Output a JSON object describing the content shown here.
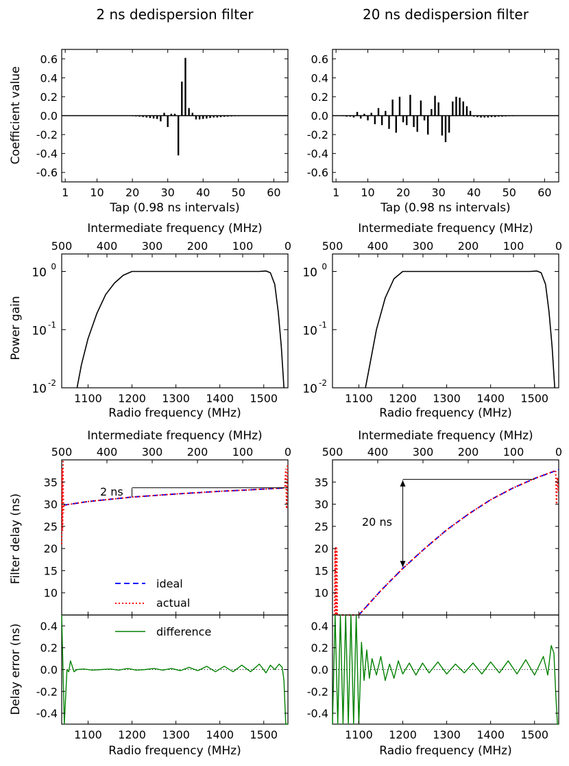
{
  "columns": [
    {
      "title": "2 ns dedispersion filter"
    },
    {
      "title": "20 ns dedispersion filter"
    }
  ],
  "labels": {
    "tap_x": "Tap (0.98 ns intervals)",
    "coef_y": "Coefficient value",
    "if_x": "Intermediate frequency (MHz)",
    "rf_x": "Radio frequency (MHz)",
    "power_y": "Power gain",
    "delay_y": "Filter delay (ns)",
    "error_y": "Delay error (ns)"
  },
  "annotations": [
    "2 ns",
    "20 ns"
  ],
  "legend": {
    "ideal": "ideal",
    "actual": "actual",
    "difference": "difference"
  },
  "colors": {
    "ideal": "#0000ff",
    "actual": "#ff0000",
    "difference": "#008000",
    "stem": "#000000"
  },
  "chart_data": [
    {
      "type": "bar",
      "title": "2 ns dedispersion filter",
      "xlabel": "Tap (0.98 ns intervals)",
      "ylabel": "Coefficient value",
      "xlim": [
        0,
        64
      ],
      "ylim": [
        -0.7,
        0.7
      ],
      "xticks": [
        1,
        10,
        20,
        30,
        40,
        50,
        60
      ],
      "yticks": [
        0.6,
        0.4,
        0.2,
        0.0,
        -0.2,
        -0.4,
        -0.6
      ],
      "x": [
        20,
        21,
        22,
        23,
        24,
        25,
        26,
        27,
        28,
        29,
        30,
        31,
        32,
        33,
        34,
        35,
        36,
        37,
        38,
        39,
        40,
        41,
        42,
        43,
        44,
        45,
        46,
        47,
        48,
        49,
        50,
        51,
        52
      ],
      "values": [
        -0.005,
        -0.008,
        -0.01,
        -0.015,
        -0.02,
        -0.025,
        -0.03,
        -0.035,
        -0.06,
        0.03,
        -0.12,
        0.02,
        0.02,
        -0.42,
        0.36,
        0.61,
        0.08,
        0.03,
        -0.04,
        -0.04,
        -0.035,
        -0.03,
        -0.025,
        -0.02,
        -0.02,
        -0.015,
        -0.012,
        -0.01,
        -0.008,
        -0.006,
        -0.005,
        -0.003,
        -0.002
      ]
    },
    {
      "type": "bar",
      "title": "20 ns dedispersion filter",
      "xlabel": "Tap (0.98 ns intervals)",
      "ylabel": "",
      "xlim": [
        0,
        64
      ],
      "ylim": [
        -0.7,
        0.7
      ],
      "xticks": [
        1,
        10,
        20,
        30,
        40,
        50,
        60
      ],
      "yticks": [
        0.6,
        0.4,
        0.2,
        0.0,
        -0.2,
        -0.4,
        -0.6
      ],
      "x": [
        3,
        4,
        5,
        6,
        7,
        8,
        9,
        10,
        11,
        12,
        13,
        14,
        15,
        16,
        17,
        18,
        19,
        20,
        21,
        22,
        23,
        24,
        25,
        26,
        27,
        28,
        29,
        30,
        31,
        32,
        33,
        34,
        35,
        36,
        37,
        38,
        39,
        40,
        41,
        42,
        43,
        44,
        45,
        46,
        47,
        48,
        49,
        50,
        51,
        52,
        53,
        54
      ],
      "values": [
        -0.005,
        -0.01,
        -0.01,
        -0.02,
        0.04,
        -0.03,
        0.02,
        -0.05,
        0.03,
        -0.09,
        0.08,
        -0.1,
        0.05,
        -0.14,
        0.17,
        -0.18,
        0.2,
        -0.07,
        -0.1,
        0.22,
        -0.12,
        -0.17,
        0.16,
        -0.05,
        -0.2,
        0.07,
        0.21,
        0.14,
        -0.21,
        -0.28,
        -0.18,
        0.15,
        0.2,
        0.19,
        0.15,
        0.1,
        0.05,
        -0.01,
        -0.015,
        -0.02,
        -0.02,
        -0.02,
        -0.015,
        -0.015,
        -0.01,
        -0.01,
        -0.008,
        -0.006,
        -0.005,
        -0.004,
        -0.003,
        -0.002
      ]
    },
    {
      "type": "line",
      "xlabel": "Radio frequency (MHz)",
      "x2label": "Intermediate frequency (MHz)",
      "ylabel": "Power gain",
      "y_scale": "log",
      "xlim": [
        1040,
        1555
      ],
      "ylim": [
        0.01,
        2
      ],
      "xticks": [
        1100,
        1200,
        1300,
        1400,
        1500
      ],
      "x2ticks": [
        500,
        400,
        300,
        200,
        100,
        0
      ],
      "yticks": [
        "10^0",
        "10^-1",
        "10^-2"
      ],
      "x": [
        1075,
        1085,
        1100,
        1120,
        1140,
        1160,
        1180,
        1200,
        1300,
        1400,
        1490,
        1505,
        1515,
        1525,
        1533,
        1540,
        1546
      ],
      "values": [
        0.01,
        0.025,
        0.07,
        0.19,
        0.4,
        0.63,
        0.86,
        1.0,
        1.0,
        1.0,
        1.0,
        1.02,
        0.95,
        0.6,
        0.2,
        0.05,
        0.01
      ]
    },
    {
      "type": "line",
      "xlabel": "Radio frequency (MHz)",
      "x2label": "Intermediate frequency (MHz)",
      "ylabel": "",
      "y_scale": "log",
      "xlim": [
        1040,
        1555
      ],
      "ylim": [
        0.01,
        2
      ],
      "xticks": [
        1100,
        1200,
        1300,
        1400,
        1500
      ],
      "x2ticks": [
        500,
        400,
        300,
        200,
        100,
        0
      ],
      "yticks": [
        "10^0",
        "10^-1",
        "10^-2"
      ],
      "x": [
        1115,
        1125,
        1140,
        1160,
        1180,
        1200,
        1300,
        1400,
        1490,
        1505,
        1515,
        1525,
        1533,
        1540,
        1546
      ],
      "values": [
        0.01,
        0.025,
        0.1,
        0.35,
        0.75,
        1.0,
        1.0,
        1.0,
        1.0,
        1.02,
        0.95,
        0.6,
        0.2,
        0.05,
        0.01
      ]
    },
    {
      "type": "line",
      "xlabel": "",
      "x2label": "Intermediate frequency (MHz)",
      "ylabel": "Filter delay (ns)",
      "xlim": [
        1040,
        1555
      ],
      "ylim": [
        5,
        40
      ],
      "yticks": [
        35,
        30,
        25,
        20,
        15,
        10
      ],
      "x2ticks": [
        500,
        400,
        300,
        200,
        100,
        0
      ],
      "series": [
        {
          "name": "ideal",
          "x": [
            1045,
            1100,
            1200,
            1300,
            1400,
            1500,
            1550
          ],
          "values": [
            29.8,
            30.6,
            31.6,
            32.3,
            32.9,
            33.4,
            33.7
          ]
        },
        {
          "name": "actual",
          "x": [
            1040,
            1041,
            1042,
            1043,
            1044,
            1045,
            1046,
            1100,
            1200,
            1300,
            1400,
            1500,
            1548,
            1550,
            1552,
            1554
          ],
          "values": [
            21,
            38,
            24,
            40,
            28,
            30,
            29.8,
            30.6,
            31.6,
            32.3,
            32.9,
            33.4,
            33.7,
            38,
            29,
            39
          ]
        }
      ],
      "annotation": "2 ns"
    },
    {
      "type": "line",
      "xlabel": "",
      "x2label": "Intermediate frequency (MHz)",
      "ylabel": "",
      "xlim": [
        1040,
        1555
      ],
      "ylim": [
        5,
        40
      ],
      "yticks": [
        35,
        30,
        25,
        20,
        15,
        10
      ],
      "x2ticks": [
        500,
        400,
        300,
        200,
        100,
        0
      ],
      "series": [
        {
          "name": "ideal",
          "x": [
            1100,
            1150,
            1200,
            1250,
            1300,
            1350,
            1400,
            1450,
            1500,
            1555
          ],
          "values": [
            5,
            10.5,
            15.5,
            20,
            24.2,
            27.8,
            31,
            33.6,
            35.8,
            37.8
          ]
        },
        {
          "name": "actual",
          "x": [
            1045,
            1046,
            1047,
            1048,
            1049,
            1050,
            1051,
            1052,
            1100,
            1150,
            1200,
            1250,
            1300,
            1350,
            1400,
            1450,
            1500,
            1548,
            1550,
            1552,
            1554
          ],
          "values": [
            5,
            20,
            5,
            20.5,
            5,
            20,
            5,
            5,
            5,
            10.5,
            15.5,
            20,
            24.2,
            27.8,
            31,
            33.6,
            35.8,
            37.6,
            30,
            36,
            33
          ]
        }
      ],
      "annotation": "20 ns"
    },
    {
      "type": "line",
      "xlabel": "Radio frequency (MHz)",
      "ylabel": "Delay error (ns)",
      "xlim": [
        1040,
        1555
      ],
      "ylim": [
        -0.5,
        0.5
      ],
      "xticks": [
        1100,
        1200,
        1300,
        1400,
        1500
      ],
      "yticks": [
        0.4,
        0.2,
        0.0,
        -0.2,
        -0.4
      ],
      "series": [
        {
          "name": "difference",
          "x": [
            1040,
            1046,
            1052,
            1056,
            1060,
            1064,
            1068,
            1075,
            1090,
            1110,
            1130,
            1150,
            1170,
            1190,
            1210,
            1230,
            1250,
            1270,
            1290,
            1310,
            1330,
            1350,
            1370,
            1390,
            1410,
            1430,
            1450,
            1470,
            1490,
            1505,
            1515,
            1525,
            1535,
            1542,
            1546,
            1550,
            1555
          ],
          "values": [
            0.5,
            -0.5,
            0.0,
            -0.02,
            0.08,
            0.03,
            -0.02,
            0.0,
            0.005,
            -0.005,
            0.0,
            0.005,
            -0.005,
            0.01,
            -0.005,
            0.0,
            0.01,
            -0.005,
            0.01,
            -0.01,
            0.02,
            -0.01,
            0.03,
            -0.02,
            0.03,
            -0.02,
            0.04,
            -0.02,
            0.05,
            -0.03,
            0.04,
            0.0,
            0.05,
            0.02,
            -0.1,
            -0.5,
            -0.5
          ]
        }
      ]
    },
    {
      "type": "line",
      "xlabel": "Radio frequency (MHz)",
      "ylabel": "",
      "xlim": [
        1040,
        1555
      ],
      "ylim": [
        -0.5,
        0.5
      ],
      "xticks": [
        1100,
        1200,
        1300,
        1400,
        1500
      ],
      "yticks": [
        0.4,
        0.2,
        0.0,
        -0.2,
        -0.4
      ],
      "series": [
        {
          "name": "difference",
          "x": [
            1040,
            1046,
            1052,
            1058,
            1064,
            1070,
            1076,
            1082,
            1088,
            1094,
            1100,
            1106,
            1112,
            1118,
            1124,
            1130,
            1140,
            1150,
            1160,
            1170,
            1180,
            1190,
            1200,
            1215,
            1230,
            1245,
            1260,
            1280,
            1300,
            1320,
            1340,
            1360,
            1380,
            1400,
            1420,
            1440,
            1460,
            1480,
            1500,
            1520,
            1530,
            1538,
            1544,
            1548,
            1552,
            1555
          ],
          "values": [
            -0.5,
            0.5,
            -0.5,
            0.5,
            -0.5,
            0.5,
            -0.5,
            0.5,
            -0.5,
            0.5,
            -0.5,
            0.25,
            -0.1,
            0.18,
            -0.08,
            0.1,
            -0.05,
            0.12,
            -0.1,
            0.05,
            -0.08,
            0.08,
            -0.04,
            0.06,
            -0.05,
            0.06,
            -0.03,
            0.07,
            -0.04,
            0.05,
            -0.03,
            0.06,
            -0.04,
            0.07,
            -0.03,
            0.08,
            -0.04,
            0.09,
            -0.05,
            0.12,
            -0.05,
            0.22,
            0.15,
            -0.2,
            -0.5,
            -0.5
          ]
        }
      ]
    }
  ]
}
